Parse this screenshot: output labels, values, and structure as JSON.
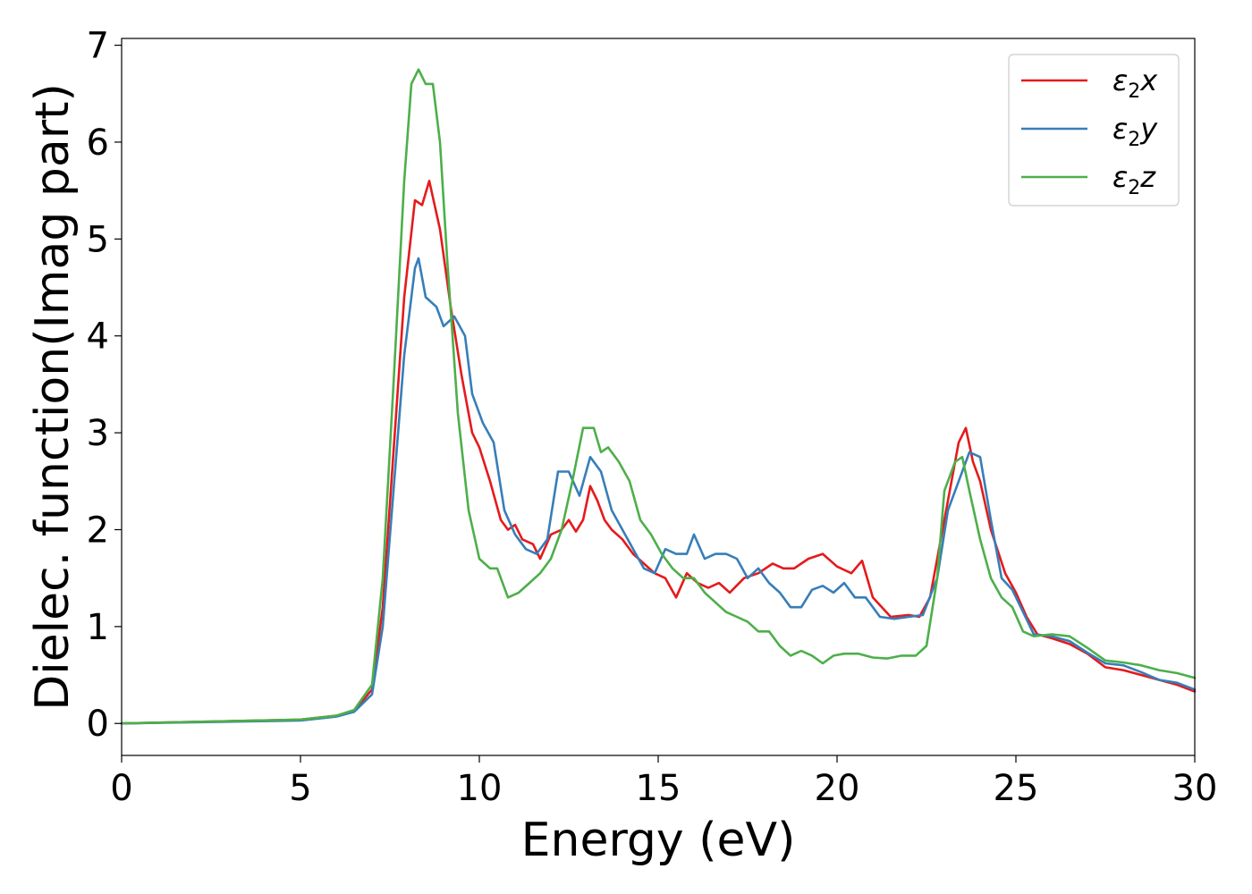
{
  "chart_data": {
    "type": "line",
    "title": "",
    "xlabel": "Energy (eV)",
    "ylabel": "Dielec. function(Imag part)",
    "xlim": [
      0,
      30
    ],
    "ylim": [
      -0.33,
      7.07
    ],
    "xticks": [
      0,
      5,
      10,
      15,
      20,
      25,
      30
    ],
    "yticks": [
      0,
      1,
      2,
      3,
      4,
      5,
      6,
      7
    ],
    "grid": false,
    "legend_position": "top-right",
    "series": [
      {
        "name": "ε₂x",
        "legend_base": "ε",
        "legend_sub": "2",
        "legend_suffix": "x",
        "color": "#e41a1c",
        "points": [
          [
            0,
            0.0
          ],
          [
            5,
            0.04
          ],
          [
            6,
            0.08
          ],
          [
            6.5,
            0.13
          ],
          [
            7,
            0.35
          ],
          [
            7.3,
            1.2
          ],
          [
            7.6,
            2.8
          ],
          [
            7.9,
            4.4
          ],
          [
            8.2,
            5.4
          ],
          [
            8.4,
            5.35
          ],
          [
            8.6,
            5.6
          ],
          [
            8.9,
            5.1
          ],
          [
            9.2,
            4.3
          ],
          [
            9.5,
            3.6
          ],
          [
            9.8,
            3.0
          ],
          [
            10.0,
            2.85
          ],
          [
            10.3,
            2.5
          ],
          [
            10.6,
            2.1
          ],
          [
            10.8,
            2.0
          ],
          [
            11.0,
            2.05
          ],
          [
            11.2,
            1.9
          ],
          [
            11.5,
            1.85
          ],
          [
            11.7,
            1.7
          ],
          [
            12.0,
            1.95
          ],
          [
            12.3,
            2.0
          ],
          [
            12.5,
            2.1
          ],
          [
            12.7,
            1.98
          ],
          [
            12.9,
            2.1
          ],
          [
            13.1,
            2.45
          ],
          [
            13.3,
            2.3
          ],
          [
            13.5,
            2.1
          ],
          [
            13.7,
            2.0
          ],
          [
            14.0,
            1.9
          ],
          [
            14.3,
            1.75
          ],
          [
            14.6,
            1.65
          ],
          [
            14.9,
            1.55
          ],
          [
            15.2,
            1.5
          ],
          [
            15.5,
            1.3
          ],
          [
            15.8,
            1.55
          ],
          [
            16.1,
            1.45
          ],
          [
            16.4,
            1.4
          ],
          [
            16.7,
            1.45
          ],
          [
            17.0,
            1.35
          ],
          [
            17.4,
            1.5
          ],
          [
            17.8,
            1.55
          ],
          [
            18.2,
            1.65
          ],
          [
            18.5,
            1.6
          ],
          [
            18.8,
            1.6
          ],
          [
            19.2,
            1.7
          ],
          [
            19.6,
            1.75
          ],
          [
            20.0,
            1.62
          ],
          [
            20.4,
            1.55
          ],
          [
            20.7,
            1.68
          ],
          [
            21.0,
            1.3
          ],
          [
            21.5,
            1.1
          ],
          [
            22.0,
            1.12
          ],
          [
            22.3,
            1.1
          ],
          [
            22.6,
            1.3
          ],
          [
            22.9,
            1.9
          ],
          [
            23.2,
            2.5
          ],
          [
            23.4,
            2.9
          ],
          [
            23.6,
            3.05
          ],
          [
            23.8,
            2.7
          ],
          [
            24.0,
            2.5
          ],
          [
            24.3,
            2.0
          ],
          [
            24.7,
            1.55
          ],
          [
            25.0,
            1.35
          ],
          [
            25.3,
            1.1
          ],
          [
            25.6,
            0.92
          ],
          [
            26.0,
            0.88
          ],
          [
            26.5,
            0.82
          ],
          [
            27.0,
            0.72
          ],
          [
            27.5,
            0.58
          ],
          [
            28.0,
            0.55
          ],
          [
            28.5,
            0.5
          ],
          [
            29.0,
            0.45
          ],
          [
            29.5,
            0.4
          ],
          [
            30.0,
            0.33
          ]
        ]
      },
      {
        "name": "ε₂y",
        "legend_base": "ε",
        "legend_sub": "2",
        "legend_suffix": "y",
        "color": "#377eb8",
        "points": [
          [
            0,
            0.0
          ],
          [
            5,
            0.03
          ],
          [
            6,
            0.07
          ],
          [
            6.5,
            0.12
          ],
          [
            7,
            0.3
          ],
          [
            7.3,
            1.0
          ],
          [
            7.6,
            2.4
          ],
          [
            7.9,
            3.8
          ],
          [
            8.2,
            4.7
          ],
          [
            8.3,
            4.8
          ],
          [
            8.5,
            4.4
          ],
          [
            8.8,
            4.3
          ],
          [
            9.0,
            4.1
          ],
          [
            9.3,
            4.2
          ],
          [
            9.6,
            4.0
          ],
          [
            9.8,
            3.4
          ],
          [
            10.1,
            3.1
          ],
          [
            10.4,
            2.9
          ],
          [
            10.7,
            2.2
          ],
          [
            11.0,
            1.95
          ],
          [
            11.3,
            1.8
          ],
          [
            11.6,
            1.75
          ],
          [
            11.9,
            1.9
          ],
          [
            12.2,
            2.6
          ],
          [
            12.5,
            2.6
          ],
          [
            12.8,
            2.35
          ],
          [
            13.1,
            2.75
          ],
          [
            13.4,
            2.6
          ],
          [
            13.7,
            2.2
          ],
          [
            14.0,
            2.0
          ],
          [
            14.3,
            1.8
          ],
          [
            14.6,
            1.6
          ],
          [
            14.9,
            1.55
          ],
          [
            15.2,
            1.8
          ],
          [
            15.5,
            1.75
          ],
          [
            15.8,
            1.75
          ],
          [
            16.0,
            1.95
          ],
          [
            16.3,
            1.7
          ],
          [
            16.6,
            1.75
          ],
          [
            16.9,
            1.75
          ],
          [
            17.2,
            1.7
          ],
          [
            17.5,
            1.5
          ],
          [
            17.8,
            1.6
          ],
          [
            18.1,
            1.45
          ],
          [
            18.4,
            1.35
          ],
          [
            18.7,
            1.2
          ],
          [
            19.0,
            1.2
          ],
          [
            19.3,
            1.38
          ],
          [
            19.6,
            1.42
          ],
          [
            19.9,
            1.35
          ],
          [
            20.2,
            1.45
          ],
          [
            20.5,
            1.3
          ],
          [
            20.8,
            1.3
          ],
          [
            21.2,
            1.1
          ],
          [
            21.6,
            1.08
          ],
          [
            22.0,
            1.1
          ],
          [
            22.4,
            1.12
          ],
          [
            22.8,
            1.5
          ],
          [
            23.1,
            2.2
          ],
          [
            23.4,
            2.5
          ],
          [
            23.7,
            2.8
          ],
          [
            24.0,
            2.75
          ],
          [
            24.3,
            2.1
          ],
          [
            24.6,
            1.5
          ],
          [
            24.9,
            1.38
          ],
          [
            25.2,
            1.15
          ],
          [
            25.5,
            0.92
          ],
          [
            26.0,
            0.9
          ],
          [
            26.5,
            0.85
          ],
          [
            27.0,
            0.73
          ],
          [
            27.5,
            0.62
          ],
          [
            28.0,
            0.6
          ],
          [
            28.5,
            0.53
          ],
          [
            29.0,
            0.45
          ],
          [
            29.5,
            0.42
          ],
          [
            30.0,
            0.35
          ]
        ]
      },
      {
        "name": "ε₂z",
        "legend_base": "ε",
        "legend_sub": "2",
        "legend_suffix": "z",
        "color": "#4daf4a",
        "points": [
          [
            0,
            0.0
          ],
          [
            5,
            0.04
          ],
          [
            6,
            0.08
          ],
          [
            6.5,
            0.14
          ],
          [
            7,
            0.4
          ],
          [
            7.3,
            1.5
          ],
          [
            7.6,
            3.5
          ],
          [
            7.9,
            5.6
          ],
          [
            8.1,
            6.6
          ],
          [
            8.3,
            6.75
          ],
          [
            8.5,
            6.6
          ],
          [
            8.7,
            6.6
          ],
          [
            8.9,
            6.0
          ],
          [
            9.1,
            4.8
          ],
          [
            9.4,
            3.2
          ],
          [
            9.7,
            2.2
          ],
          [
            10.0,
            1.7
          ],
          [
            10.3,
            1.6
          ],
          [
            10.5,
            1.6
          ],
          [
            10.8,
            1.3
          ],
          [
            11.1,
            1.35
          ],
          [
            11.4,
            1.45
          ],
          [
            11.7,
            1.55
          ],
          [
            12.0,
            1.7
          ],
          [
            12.3,
            2.0
          ],
          [
            12.6,
            2.5
          ],
          [
            12.9,
            3.05
          ],
          [
            13.2,
            3.05
          ],
          [
            13.4,
            2.8
          ],
          [
            13.6,
            2.85
          ],
          [
            13.9,
            2.7
          ],
          [
            14.2,
            2.5
          ],
          [
            14.5,
            2.1
          ],
          [
            14.8,
            1.95
          ],
          [
            15.1,
            1.75
          ],
          [
            15.4,
            1.6
          ],
          [
            15.7,
            1.5
          ],
          [
            16.0,
            1.5
          ],
          [
            16.3,
            1.35
          ],
          [
            16.6,
            1.25
          ],
          [
            16.9,
            1.15
          ],
          [
            17.2,
            1.1
          ],
          [
            17.5,
            1.05
          ],
          [
            17.8,
            0.95
          ],
          [
            18.1,
            0.95
          ],
          [
            18.4,
            0.8
          ],
          [
            18.7,
            0.7
          ],
          [
            19.0,
            0.75
          ],
          [
            19.3,
            0.7
          ],
          [
            19.6,
            0.62
          ],
          [
            19.9,
            0.7
          ],
          [
            20.2,
            0.72
          ],
          [
            20.6,
            0.72
          ],
          [
            21.0,
            0.68
          ],
          [
            21.4,
            0.67
          ],
          [
            21.8,
            0.7
          ],
          [
            22.2,
            0.7
          ],
          [
            22.5,
            0.8
          ],
          [
            22.8,
            1.5
          ],
          [
            23.0,
            2.4
          ],
          [
            23.3,
            2.7
          ],
          [
            23.5,
            2.75
          ],
          [
            23.7,
            2.4
          ],
          [
            24.0,
            1.9
          ],
          [
            24.3,
            1.5
          ],
          [
            24.6,
            1.3
          ],
          [
            24.9,
            1.2
          ],
          [
            25.2,
            0.95
          ],
          [
            25.5,
            0.9
          ],
          [
            26.0,
            0.92
          ],
          [
            26.5,
            0.9
          ],
          [
            27.0,
            0.78
          ],
          [
            27.5,
            0.65
          ],
          [
            28.0,
            0.63
          ],
          [
            28.5,
            0.6
          ],
          [
            29.0,
            0.55
          ],
          [
            29.5,
            0.52
          ],
          [
            30.0,
            0.47
          ]
        ]
      }
    ]
  }
}
